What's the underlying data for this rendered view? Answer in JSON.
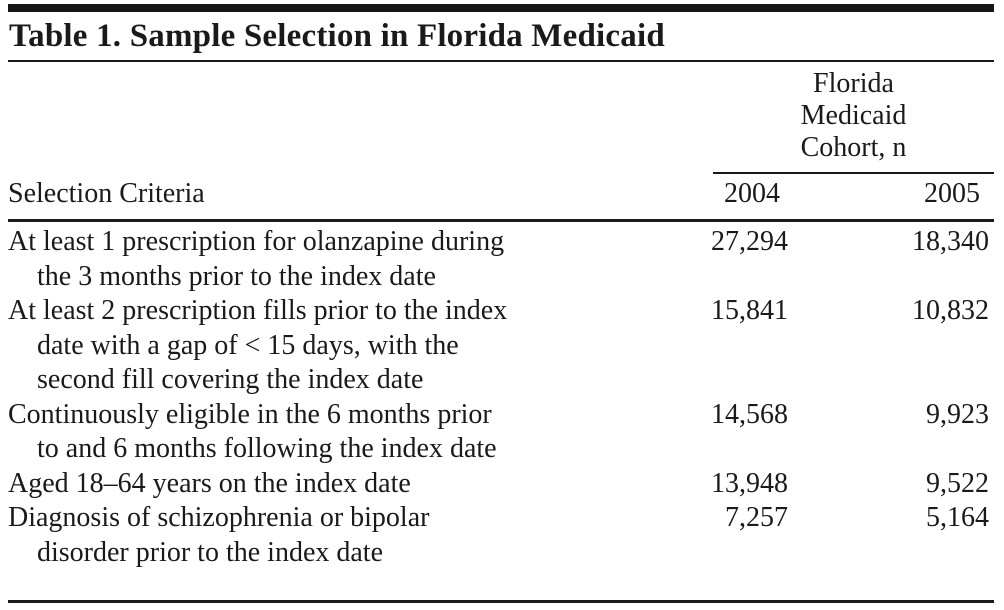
{
  "page": {
    "title": "Table 1. Sample Selection in Florida Medicaid"
  },
  "table": {
    "group_header_lines": [
      "Florida",
      "Medicaid",
      "Cohort, n"
    ],
    "criteria_header": "Selection Criteria",
    "year_headers": [
      "2004",
      "2005"
    ],
    "rows": [
      {
        "lines": [
          "At least 1 prescription for olanzapine during",
          "the 3 months prior to the index date"
        ],
        "n_2004": "27,294",
        "n_2005": "18,340"
      },
      {
        "lines": [
          "At least 2 prescription fills prior to the index",
          "date with a gap of < 15 days, with the",
          "second fill covering the index date"
        ],
        "n_2004": "15,841",
        "n_2005": "10,832"
      },
      {
        "lines": [
          "Continuously eligible in the 6 months prior",
          "to and 6 months following the index date"
        ],
        "n_2004": "14,568",
        "n_2005": "9,923"
      },
      {
        "lines": [
          "Aged 18–64 years on the index date"
        ],
        "n_2004": "13,948",
        "n_2005": "9,522"
      },
      {
        "lines": [
          "Diagnosis of schizophrenia or bipolar",
          "disorder prior to the index date"
        ],
        "n_2004": "7,257",
        "n_2005": "5,164"
      }
    ]
  },
  "colors": {
    "background": "#ffffff",
    "text": "#1a1a1a",
    "rule": "#1a1a1a",
    "top_bar": "#161616"
  }
}
